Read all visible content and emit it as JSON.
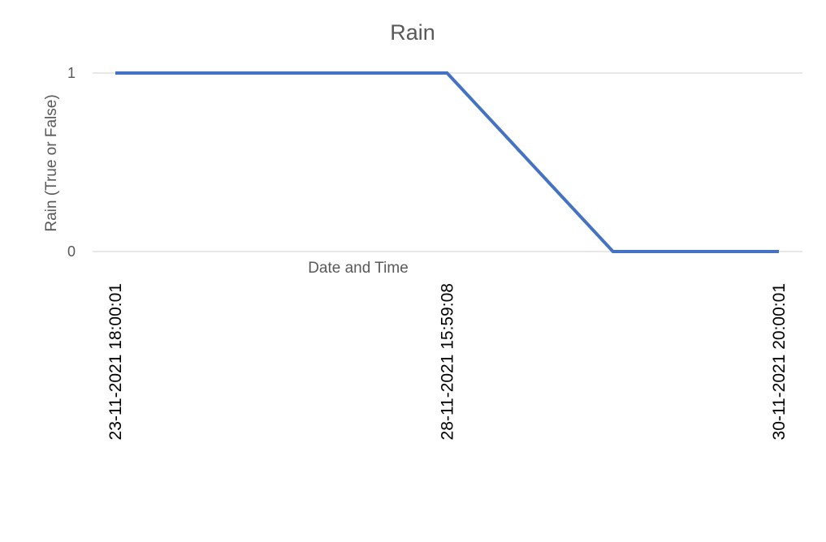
{
  "chart_data": {
    "type": "line",
    "title": "Rain",
    "xlabel": "Date and Time",
    "ylabel": "Rain (True or False)",
    "categories": [
      "23-11-2021 18:00:01",
      "",
      "28-11-2021 15:59:08",
      "",
      "30-11-2021 20:00:01"
    ],
    "series": [
      {
        "values": [
          1,
          1,
          1,
          0,
          0
        ],
        "color": "#4472c4"
      }
    ],
    "y_ticks": [
      "0",
      "1"
    ],
    "ylim": [
      0,
      1
    ],
    "grid": true,
    "legend": "none"
  }
}
